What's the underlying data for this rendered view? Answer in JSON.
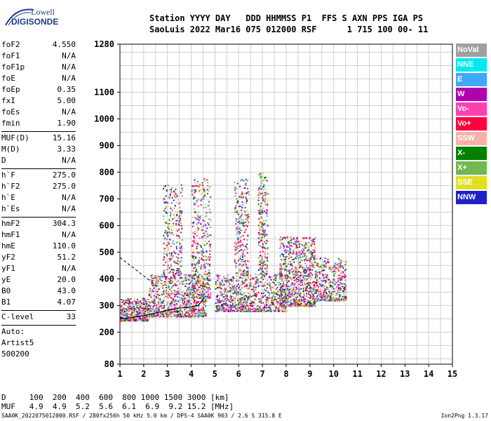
{
  "logo": {
    "line1": "Lowell",
    "line2": "DIGISONDE"
  },
  "header": {
    "line1": "Station YYYY DAY   DDD HHMMSS P1  FFS S AXN PPS IGA PS",
    "line2": "SaoLuis 2022 Mar16 075 012000 RSF      1 715 100 00- 11"
  },
  "params": [
    {
      "k": "foF2",
      "v": "4.550"
    },
    {
      "k": "foF1",
      "v": "N/A"
    },
    {
      "k": "foF1p",
      "v": "N/A"
    },
    {
      "k": "foE",
      "v": "N/A"
    },
    {
      "k": "foEp",
      "v": "0.35"
    },
    {
      "k": "fxI",
      "v": "5.00"
    },
    {
      "k": "foEs",
      "v": "N/A"
    },
    {
      "k": "fmin",
      "v": "1.90"
    },
    {
      "sep": true
    },
    {
      "k": "MUF(D)",
      "v": "15.16"
    },
    {
      "k": "M(D)",
      "v": "3.33"
    },
    {
      "k": "D",
      "v": "N/A"
    },
    {
      "sep": true
    },
    {
      "k": "h`F",
      "v": "275.0"
    },
    {
      "k": "h`F2",
      "v": "275.0"
    },
    {
      "k": "h`E",
      "v": "N/A"
    },
    {
      "k": "h`Es",
      "v": "N/A"
    },
    {
      "sep": true
    },
    {
      "k": "hmF2",
      "v": "304.3"
    },
    {
      "k": "hmF1",
      "v": "N/A"
    },
    {
      "k": "hmE",
      "v": "110.0"
    },
    {
      "k": "yF2",
      "v": "51.2"
    },
    {
      "k": "yF1",
      "v": "N/A"
    },
    {
      "k": "yE",
      "v": "20.0"
    },
    {
      "k": "B0",
      "v": "43.0"
    },
    {
      "k": "B1",
      "v": "4.07"
    },
    {
      "sep": true
    },
    {
      "k": "C-level",
      "v": "33"
    },
    {
      "sep": true
    },
    {
      "k": "Auto:",
      "v": ""
    },
    {
      "k": "Artist5",
      "v": ""
    },
    {
      "k": "500200",
      "v": ""
    }
  ],
  "legend": [
    {
      "label": "NoVal",
      "color": "#a0a0a0"
    },
    {
      "label": "NNE",
      "color": "#00e8f0"
    },
    {
      "label": "E",
      "color": "#40a8f8"
    },
    {
      "label": "W",
      "color": "#b000b0"
    },
    {
      "label": "Vo-",
      "color": "#ff40b0"
    },
    {
      "label": "Vo+",
      "color": "#ff0040"
    },
    {
      "label": "SSW",
      "color": "#f8b0a8"
    },
    {
      "label": "X-",
      "color": "#008000"
    },
    {
      "label": "X+",
      "color": "#70b850"
    },
    {
      "label": "SSE",
      "color": "#e0e020"
    },
    {
      "label": "NNW",
      "color": "#2020c8"
    }
  ],
  "bottom": {
    "d_row": "D     100  200  400  600  800 1000 1500 3000 [km]",
    "muf_row": "MUF   4.9  4.9  5.2  5.6  6.1  6.9  9.2 15.2 [MHz]"
  },
  "footer": "SAA0K_2022075012000.RSF / 280fx256h 50 kHz 5.0 km / DPS-4 SAA0K 903 / 2.6 S 315.8 E",
  "version": "Ion2Png 1.3.17",
  "chart_data": {
    "type": "scatter",
    "title": "",
    "xlabel": "",
    "ylabel": "",
    "xlim": [
      1,
      15
    ],
    "ylim": [
      80,
      1280
    ],
    "x_ticks": [
      1,
      2,
      3,
      4,
      5,
      6,
      7,
      8,
      9,
      10,
      11,
      12,
      13,
      14,
      15
    ],
    "y_ticks": [
      80,
      200,
      300,
      400,
      500,
      600,
      700,
      800,
      900,
      1000,
      1100,
      1280
    ],
    "grid": true,
    "legend_position": "right",
    "traces": [
      {
        "name": "F-trace",
        "points": [
          [
            1.0,
            250
          ],
          [
            1.5,
            255
          ],
          [
            2.0,
            262
          ],
          [
            2.5,
            272
          ],
          [
            3.0,
            282
          ],
          [
            3.5,
            290
          ],
          [
            4.0,
            295
          ],
          [
            4.3,
            300
          ],
          [
            4.55,
            330
          ]
        ]
      }
    ],
    "echo_clusters": [
      {
        "x_range": [
          1.0,
          2.2
        ],
        "h_range": [
          245,
          330
        ],
        "intensity": "medium"
      },
      {
        "x_range": [
          2.2,
          4.6
        ],
        "h_range": [
          260,
          420
        ],
        "intensity": "high"
      },
      {
        "x_range": [
          2.8,
          3.6
        ],
        "h_range": [
          420,
          760
        ],
        "intensity": "low"
      },
      {
        "x_range": [
          4.0,
          4.8
        ],
        "h_range": [
          330,
          780
        ],
        "intensity": "medium"
      },
      {
        "x_range": [
          5.0,
          8.0
        ],
        "h_range": [
          280,
          420
        ],
        "intensity": "high"
      },
      {
        "x_range": [
          5.8,
          6.4
        ],
        "h_range": [
          420,
          780
        ],
        "intensity": "low"
      },
      {
        "x_range": [
          6.8,
          7.2
        ],
        "h_range": [
          420,
          800
        ],
        "intensity": "low"
      },
      {
        "x_range": [
          7.7,
          9.2
        ],
        "h_range": [
          300,
          560
        ],
        "intensity": "high"
      },
      {
        "x_range": [
          9.2,
          10.5
        ],
        "h_range": [
          320,
          480
        ],
        "intensity": "medium"
      }
    ]
  }
}
